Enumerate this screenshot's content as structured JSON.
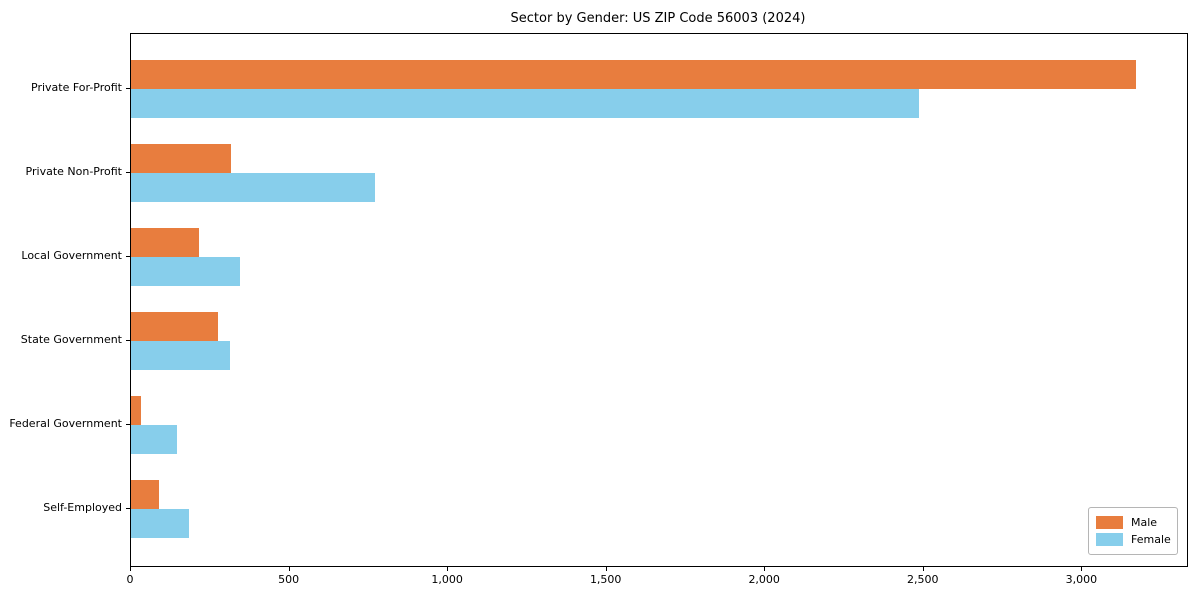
{
  "title": "Sector by Gender: US ZIP Code 56003 (2024)",
  "chart_data": {
    "type": "bar",
    "orientation": "horizontal",
    "title": "Sector by Gender: US ZIP Code 56003 (2024)",
    "categories": [
      "Private For-Profit",
      "Private Non-Profit",
      "Local Government",
      "State Government",
      "Federal Government",
      "Self-Employed"
    ],
    "series": [
      {
        "name": "Male",
        "color": "#E87D3E",
        "values": [
          3170,
          315,
          215,
          275,
          30,
          88
        ]
      },
      {
        "name": "Female",
        "color": "#87CEEB",
        "values": [
          2485,
          770,
          345,
          313,
          145,
          184
        ]
      }
    ],
    "xlabel": "",
    "ylabel": "",
    "xlim": [
      0,
      3330
    ],
    "xticks": [
      0,
      500,
      1000,
      1500,
      2000,
      2500,
      3000
    ],
    "xtick_labels": [
      "0",
      "500",
      "1,000",
      "1,500",
      "2,000",
      "2,500",
      "3,000"
    ],
    "grid": false,
    "legend_position": "lower right",
    "legend_labels": [
      "Male",
      "Female"
    ]
  }
}
